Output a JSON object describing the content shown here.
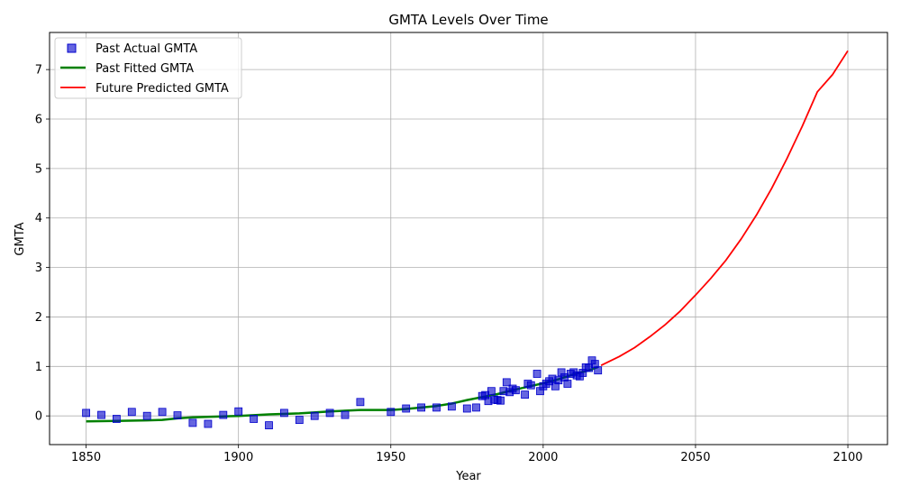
{
  "chart_data": {
    "type": "line",
    "title": "GMTA Levels Over Time",
    "xlabel": "Year",
    "ylabel": "GMTA",
    "xlim": [
      1838,
      2113
    ],
    "ylim": [
      -0.58,
      7.75
    ],
    "xticks": [
      1850,
      1900,
      1950,
      2000,
      2050,
      2100
    ],
    "yticks": [
      0,
      1,
      2,
      3,
      4,
      5,
      6,
      7
    ],
    "grid": true,
    "legend_position": "top-left",
    "colors": {
      "actual": "#0000cc",
      "fitted": "#008000",
      "future": "#ff0000",
      "grid": "#b0b0b0"
    },
    "series": [
      {
        "name": "Past Actual GMTA",
        "kind": "scatter",
        "points": [
          [
            1850,
            0.06
          ],
          [
            1855,
            0.02
          ],
          [
            1860,
            -0.06
          ],
          [
            1865,
            0.08
          ],
          [
            1870,
            0.0
          ],
          [
            1875,
            0.08
          ],
          [
            1880,
            0.01
          ],
          [
            1885,
            -0.14
          ],
          [
            1890,
            -0.16
          ],
          [
            1895,
            0.02
          ],
          [
            1900,
            0.09
          ],
          [
            1905,
            -0.06
          ],
          [
            1910,
            -0.19
          ],
          [
            1915,
            0.06
          ],
          [
            1920,
            -0.08
          ],
          [
            1925,
            0.0
          ],
          [
            1930,
            0.06
          ],
          [
            1935,
            0.02
          ],
          [
            1940,
            0.28
          ],
          [
            1950,
            0.08
          ],
          [
            1955,
            0.15
          ],
          [
            1960,
            0.17
          ],
          [
            1965,
            0.17
          ],
          [
            1970,
            0.19
          ],
          [
            1975,
            0.15
          ],
          [
            1978,
            0.17
          ],
          [
            1980,
            0.4
          ],
          [
            1981,
            0.42
          ],
          [
            1982,
            0.3
          ],
          [
            1983,
            0.5
          ],
          [
            1984,
            0.33
          ],
          [
            1985,
            0.32
          ],
          [
            1986,
            0.31
          ],
          [
            1987,
            0.5
          ],
          [
            1988,
            0.68
          ],
          [
            1989,
            0.48
          ],
          [
            1990,
            0.55
          ],
          [
            1991,
            0.52
          ],
          [
            1994,
            0.43
          ],
          [
            1995,
            0.65
          ],
          [
            1996,
            0.62
          ],
          [
            1998,
            0.85
          ],
          [
            1999,
            0.5
          ],
          [
            2000,
            0.6
          ],
          [
            2001,
            0.65
          ],
          [
            2002,
            0.7
          ],
          [
            2003,
            0.75
          ],
          [
            2004,
            0.6
          ],
          [
            2005,
            0.72
          ],
          [
            2006,
            0.88
          ],
          [
            2007,
            0.78
          ],
          [
            2008,
            0.65
          ],
          [
            2009,
            0.85
          ],
          [
            2010,
            0.88
          ],
          [
            2011,
            0.82
          ],
          [
            2012,
            0.8
          ],
          [
            2013,
            0.87
          ],
          [
            2014,
            0.98
          ],
          [
            2015,
            0.97
          ],
          [
            2016,
            1.12
          ],
          [
            2017,
            1.05
          ],
          [
            2018,
            0.92
          ]
        ]
      },
      {
        "name": "Past Fitted GMTA",
        "kind": "line",
        "points": [
          [
            1850,
            -0.11
          ],
          [
            1860,
            -0.1
          ],
          [
            1870,
            -0.09
          ],
          [
            1875,
            -0.08
          ],
          [
            1880,
            -0.05
          ],
          [
            1885,
            -0.03
          ],
          [
            1890,
            -0.02
          ],
          [
            1900,
            0.0
          ],
          [
            1910,
            0.03
          ],
          [
            1920,
            0.05
          ],
          [
            1930,
            0.09
          ],
          [
            1940,
            0.12
          ],
          [
            1950,
            0.12
          ],
          [
            1955,
            0.14
          ],
          [
            1960,
            0.17
          ],
          [
            1965,
            0.2
          ],
          [
            1970,
            0.25
          ],
          [
            1975,
            0.32
          ],
          [
            1980,
            0.38
          ],
          [
            1985,
            0.44
          ],
          [
            1990,
            0.52
          ],
          [
            1995,
            0.59
          ],
          [
            2000,
            0.66
          ],
          [
            2005,
            0.74
          ],
          [
            2010,
            0.84
          ],
          [
            2015,
            0.92
          ],
          [
            2018,
            0.99
          ]
        ]
      },
      {
        "name": "Future Predicted GMTA",
        "kind": "line",
        "points": [
          [
            2019,
            1.02
          ],
          [
            2025,
            1.2
          ],
          [
            2030,
            1.38
          ],
          [
            2035,
            1.6
          ],
          [
            2040,
            1.84
          ],
          [
            2045,
            2.12
          ],
          [
            2050,
            2.44
          ],
          [
            2055,
            2.78
          ],
          [
            2060,
            3.15
          ],
          [
            2065,
            3.58
          ],
          [
            2070,
            4.06
          ],
          [
            2075,
            4.6
          ],
          [
            2080,
            5.2
          ],
          [
            2085,
            5.85
          ],
          [
            2090,
            6.55
          ],
          [
            2095,
            6.9
          ],
          [
            2100,
            7.38
          ]
        ]
      }
    ]
  }
}
